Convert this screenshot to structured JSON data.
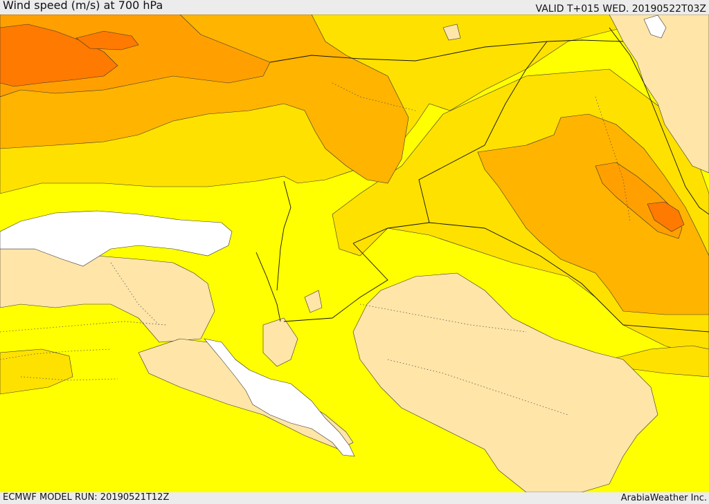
{
  "header": {
    "title": "Wind speed (m/s) at 700 hPa",
    "valid": "VALID T+015 WED. 20190522T03Z"
  },
  "footer": {
    "model_run": "ECMWF MODEL RUN: 20190521T12Z",
    "credit": "ArabiaWeather Inc."
  },
  "map": {
    "field": "wind speed at 700 hPa",
    "colors": {
      "background_band": "#ffff00",
      "light_band": "#ffe5a8",
      "mid_band": "#ffe100",
      "strong_band": "#ffb400",
      "stronger_band": "#ffa000",
      "strongest_band": "#ff7a00",
      "water_mask": "#ffffff",
      "contour_line": "#333333"
    }
  }
}
